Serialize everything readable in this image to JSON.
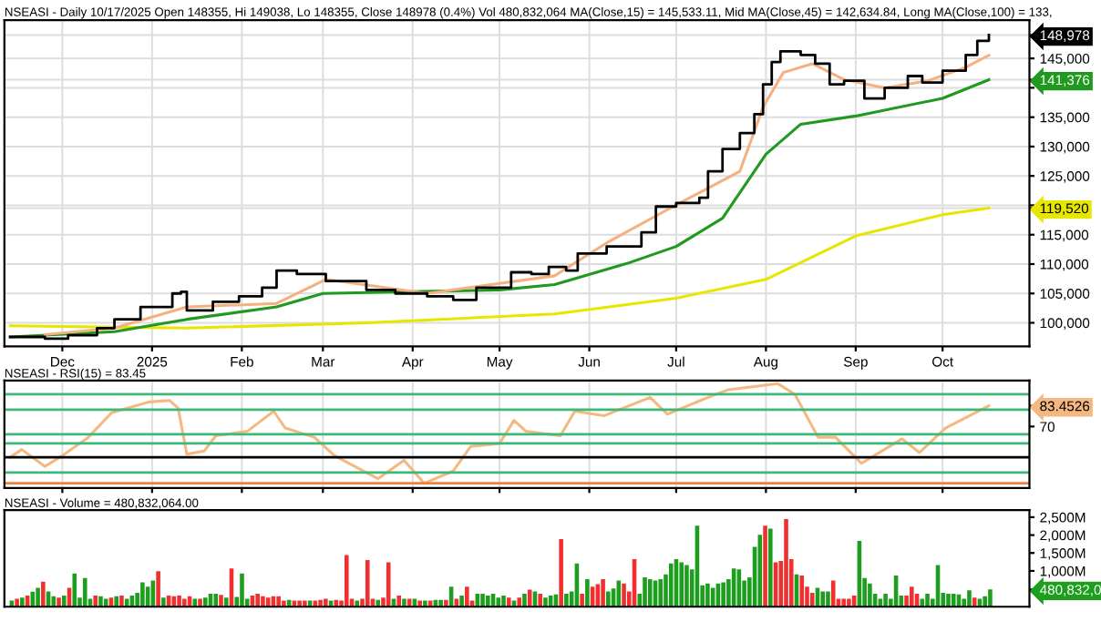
{
  "chart_data": [
    {
      "type": "line",
      "title": "NSEASI - Daily 10/17/2025 Open 148355, Hi 149038, Lo 148355, Close 148978 (0.4%) Vol 480,832,064 MA(Close,15) = 145,533.11, Mid MA(Close,45) = 142,634.84, Long MA(Close,100) = 133,",
      "xlim": [
        "2024-11-11",
        "2025-10-31"
      ],
      "ylim": [
        96000,
        151500
      ],
      "xticks": [
        {
          "value": "2024-12-01",
          "label": "Dec"
        },
        {
          "value": "2025-01-01",
          "label": "2025"
        },
        {
          "value": "2025-02-01",
          "label": "Feb"
        },
        {
          "value": "2025-03-01",
          "label": "Mar"
        },
        {
          "value": "2025-04-01",
          "label": "Apr"
        },
        {
          "value": "2025-05-01",
          "label": "May"
        },
        {
          "value": "2025-06-01",
          "label": "Jun"
        },
        {
          "value": "2025-07-01",
          "label": "Jul"
        },
        {
          "value": "2025-08-01",
          "label": "Aug"
        },
        {
          "value": "2025-09-01",
          "label": "Sep"
        },
        {
          "value": "2025-10-01",
          "label": "Oct"
        }
      ],
      "yticks": [
        {
          "value": 100000,
          "label": "100,000"
        },
        {
          "value": 105000,
          "label": "105,000"
        },
        {
          "value": 110000,
          "label": "110,000"
        },
        {
          "value": 115000,
          "label": "115,000"
        },
        {
          "value": 120000,
          "label": null
        },
        {
          "value": 125000,
          "label": "125,000"
        },
        {
          "value": 130000,
          "label": "130,000"
        },
        {
          "value": 135000,
          "label": "135,000"
        },
        {
          "value": 140000,
          "label": null
        },
        {
          "value": 145000,
          "label": "145,000"
        },
        {
          "value": 119520,
          "label": "119,520"
        },
        {
          "value": 141376,
          "label": "141,376"
        },
        {
          "value": 148978,
          "label": "148,978"
        }
      ],
      "grid": true,
      "series": [
        {
          "type": "line",
          "color": "#e6e600",
          "x": [
            "2024-11-13",
            "2025-01-13",
            "2025-03-16",
            "2025-05-20",
            "2025-07-01",
            "2025-08-01",
            "2025-09-01",
            "2025-10-01",
            "2025-10-17"
          ],
          "values": [
            99500,
            99100,
            100000,
            101500,
            104200,
            107400,
            114800,
            118400,
            119520
          ]
        },
        {
          "type": "line",
          "color": "#1f9a1f",
          "x": [
            "2024-11-13",
            "2024-12-19",
            "2025-01-13",
            "2025-02-13",
            "2025-03-01",
            "2025-04-01",
            "2025-05-01",
            "2025-05-20",
            "2025-06-14",
            "2025-07-01",
            "2025-07-17",
            "2025-08-01",
            "2025-08-13",
            "2025-09-01",
            "2025-10-01",
            "2025-10-17"
          ],
          "values": [
            97600,
            98500,
            100600,
            102700,
            105000,
            105300,
            105600,
            106500,
            110100,
            113000,
            117800,
            128700,
            133800,
            135200,
            138200,
            141376
          ]
        },
        {
          "type": "line",
          "color": "#f5b080",
          "x": [
            "2024-11-25",
            "2024-12-19",
            "2025-01-13",
            "2025-02-13",
            "2025-03-02",
            "2025-04-06",
            "2025-05-20",
            "2025-06-08",
            "2025-06-30",
            "2025-07-23",
            "2025-07-31",
            "2025-08-07",
            "2025-08-17",
            "2025-08-28",
            "2025-09-11",
            "2025-09-26",
            "2025-10-09",
            "2025-10-17"
          ],
          "values": [
            98000,
            99100,
            102700,
            103300,
            107400,
            105000,
            108000,
            113900,
            119800,
            125800,
            136700,
            142600,
            144100,
            141400,
            140000,
            141200,
            143500,
            145533
          ]
        },
        {
          "type": "step",
          "color": "#000000",
          "x": [
            "2024-11-13",
            "2024-11-25",
            "2024-12-03",
            "2024-12-13",
            "2024-12-19",
            "2024-12-28",
            "2025-01-08",
            "2025-01-11",
            "2025-01-13",
            "2025-01-22",
            "2025-01-31",
            "2025-02-08",
            "2025-02-13",
            "2025-02-20",
            "2025-03-02",
            "2025-03-16",
            "2025-03-26",
            "2025-04-06",
            "2025-04-15",
            "2025-04-23",
            "2025-04-30",
            "2025-05-05",
            "2025-05-12",
            "2025-05-18",
            "2025-05-20",
            "2025-05-24",
            "2025-05-28",
            "2025-06-07",
            "2025-06-19",
            "2025-06-24",
            "2025-07-01",
            "2025-07-09",
            "2025-07-12",
            "2025-07-17",
            "2025-07-23",
            "2025-07-28",
            "2025-07-31",
            "2025-08-03",
            "2025-08-06",
            "2025-08-13",
            "2025-08-18",
            "2025-08-23",
            "2025-08-28",
            "2025-09-04",
            "2025-09-11",
            "2025-09-19",
            "2025-09-24",
            "2025-10-01",
            "2025-10-09",
            "2025-10-13",
            "2025-10-17"
          ],
          "values": [
            97600,
            97300,
            97900,
            99100,
            100600,
            102700,
            105000,
            105300,
            102100,
            103600,
            104500,
            106000,
            108900,
            108300,
            107100,
            105600,
            105000,
            104500,
            103900,
            106000,
            106000,
            108600,
            108300,
            109500,
            109500,
            108900,
            111800,
            113000,
            115400,
            119800,
            120400,
            121300,
            125800,
            129600,
            132300,
            135500,
            140600,
            144400,
            146200,
            145600,
            144100,
            140600,
            141200,
            138200,
            140000,
            142000,
            140900,
            142900,
            145600,
            148000,
            148978
          ]
        }
      ]
    },
    {
      "type": "line",
      "title": "NSEASI - RSI(15) = 83.45",
      "xlim": [
        "2024-11-11",
        "2025-10-31"
      ],
      "ylim": [
        30,
        100
      ],
      "xticks": [
        {
          "value": "2024-12-01",
          "label": null
        },
        {
          "value": "2025-01-01",
          "label": null
        },
        {
          "value": "2025-02-01",
          "label": null
        },
        {
          "value": "2025-03-01",
          "label": null
        },
        {
          "value": "2025-04-01",
          "label": null
        },
        {
          "value": "2025-05-01",
          "label": null
        },
        {
          "value": "2025-06-01",
          "label": null
        },
        {
          "value": "2025-07-01",
          "label": null
        },
        {
          "value": "2025-08-01",
          "label": null
        },
        {
          "value": "2025-09-01",
          "label": null
        },
        {
          "value": "2025-10-01",
          "label": null
        }
      ],
      "yticks": [
        70,
        {
          "value": 83.4526,
          "label": "83.4526"
        }
      ],
      "tick_labels": "y",
      "grid": "x",
      "ref_lines": [
        {
          "axis": "y",
          "value": 91,
          "color": "#3cb878"
        },
        {
          "axis": "y",
          "value": 81,
          "color": "#3cb878"
        },
        {
          "axis": "y",
          "value": 65,
          "color": "#3cb878"
        },
        {
          "axis": "y",
          "value": 59,
          "color": "#3cb878"
        },
        {
          "axis": "y",
          "value": 50,
          "color": "#000000"
        },
        {
          "axis": "y",
          "value": 40,
          "color": "#3cb878"
        },
        {
          "axis": "y",
          "value": 33,
          "color": "#f08040"
        }
      ],
      "series": [
        {
          "color": "#f5b880",
          "x": [
            "2024-11-13",
            "2024-11-17",
            "2024-11-25",
            "2024-12-01",
            "2024-12-10",
            "2024-12-18",
            "2024-12-31",
            "2025-01-07",
            "2025-01-10",
            "2025-01-13",
            "2025-01-19",
            "2025-01-23",
            "2025-02-03",
            "2025-02-12",
            "2025-02-16",
            "2025-02-26",
            "2025-03-05",
            "2025-03-20",
            "2025-03-29",
            "2025-04-05",
            "2025-04-15",
            "2025-04-21",
            "2025-05-01",
            "2025-05-06",
            "2025-05-10",
            "2025-05-22",
            "2025-05-27",
            "2025-06-06",
            "2025-06-22",
            "2025-06-28",
            "2025-07-12",
            "2025-07-19",
            "2025-08-05",
            "2025-08-11",
            "2025-08-19",
            "2025-08-25",
            "2025-09-03",
            "2025-09-17",
            "2025-09-23",
            "2025-10-02",
            "2025-10-17"
          ],
          "values": [
            50,
            55,
            44,
            51,
            63,
            79,
            86,
            87,
            82,
            52,
            54,
            64,
            67,
            80,
            69,
            63,
            51,
            36,
            48,
            33,
            41,
            57,
            59,
            74,
            67,
            64,
            80,
            77,
            89,
            78,
            89,
            94,
            98,
            91,
            63,
            63,
            46,
            62,
            53,
            69,
            83.4526
          ]
        }
      ]
    },
    {
      "type": "bar",
      "title": "NSEASI - Volume = 480,832,064.00",
      "ylim": [
        0,
        2700
      ],
      "yticks": [
        {
          "value": 1000,
          "label": "1,000M"
        },
        {
          "value": 1500,
          "label": "1,500M"
        },
        {
          "value": 2000,
          "label": "2,000M"
        },
        {
          "value": 2500,
          "label": "2,500M"
        },
        {
          "value": 480.832064,
          "label": "480,832,0"
        }
      ],
      "tick_labels": "y",
      "categories": [
        null,
        null,
        null,
        null,
        null,
        null,
        null,
        null,
        null,
        null,
        null,
        null,
        null,
        null,
        null,
        null,
        null,
        null,
        null,
        null,
        null,
        null,
        null,
        null,
        null,
        null,
        null,
        null,
        null,
        null,
        null,
        null,
        null,
        null,
        null,
        null,
        null,
        null,
        null,
        null,
        null,
        null,
        null,
        null,
        null,
        null,
        null,
        null,
        null,
        null,
        null,
        null,
        null,
        null,
        null,
        null,
        null,
        null,
        null,
        null,
        null,
        null,
        null,
        null,
        null,
        null,
        null,
        null,
        null,
        null,
        null,
        null,
        null,
        null,
        null,
        null,
        null,
        null,
        null,
        null,
        null,
        null,
        null,
        null,
        null,
        null,
        null,
        null,
        null,
        null,
        null,
        null,
        null,
        null,
        null,
        null,
        null,
        null,
        null,
        null,
        null,
        null,
        null,
        null,
        null,
        null,
        null,
        null,
        null,
        null,
        null,
        null,
        null,
        null,
        null,
        null,
        null,
        null,
        null,
        null,
        null,
        null,
        null,
        null,
        null,
        null,
        null,
        null,
        null,
        null,
        null,
        null,
        null,
        null,
        null,
        null,
        null,
        null,
        null,
        null,
        null,
        null,
        null,
        null,
        null,
        null,
        null,
        null,
        null,
        null,
        null,
        null,
        null,
        null,
        null,
        null,
        null,
        null,
        null,
        null,
        null,
        null,
        null,
        null,
        null,
        null,
        null,
        null,
        null,
        null,
        null,
        null,
        null,
        null,
        null,
        null,
        null,
        null,
        null,
        null,
        null,
        null,
        null,
        null,
        null,
        null,
        null,
        null
      ],
      "values": [
        170,
        220,
        255,
        310,
        420,
        530,
        700,
        425,
        290,
        255,
        310,
        530,
        930,
        255,
        800,
        220,
        310,
        290,
        220,
        255,
        290,
        310,
        220,
        310,
        390,
        680,
        560,
        730,
        990,
        255,
        310,
        290,
        310,
        220,
        290,
        220,
        220,
        255,
        360,
        360,
        330,
        255,
        1070,
        270,
        930,
        220,
        310,
        360,
        290,
        255,
        290,
        290,
        170,
        190,
        170,
        170,
        170,
        170,
        170,
        190,
        220,
        170,
        190,
        170,
        1440,
        220,
        170,
        220,
        1300,
        220,
        190,
        255,
        1240,
        220,
        310,
        220,
        220,
        220,
        170,
        170,
        170,
        190,
        190,
        190,
        560,
        220,
        310,
        560,
        170,
        360,
        360,
        310,
        360,
        255,
        310,
        255,
        170,
        255,
        360,
        475,
        425,
        360,
        255,
        310,
        340,
        1890,
        360,
        425,
        1210,
        360,
        770,
        560,
        630,
        770,
        425,
        510,
        730,
        650,
        425,
        1330,
        360,
        820,
        770,
        730,
        770,
        900,
        1210,
        1330,
        1240,
        1160,
        1040,
        2260,
        600,
        650,
        530,
        650,
        680,
        770,
        1070,
        1040,
        730,
        820,
        1670,
        2010,
        2260,
        2180,
        1240,
        1280,
        2450,
        1330,
        900,
        870,
        560,
        390,
        530,
        425,
        425,
        730,
        220,
        220,
        220,
        310,
        1840,
        800,
        650,
        360,
        220,
        360,
        220,
        870,
        310,
        310,
        560,
        360,
        220,
        360,
        220,
        1160,
        390,
        360,
        360,
        340,
        220,
        460,
        255,
        220,
        290,
        480.832064
      ],
      "colors": [
        "#1e9e1e",
        "#f03030",
        "#1e9e1e",
        "#f03030",
        "#1e9e1e",
        "#1e9e1e",
        "#f03030",
        "#1e9e1e",
        "#1e9e1e",
        "#f03030",
        "#1e9e1e",
        "#f03030",
        "#1e9e1e",
        "#1e9e1e",
        "#1e9e1e",
        "#1e9e1e",
        "#f03030",
        "#1e9e1e",
        "#1e9e1e",
        "#f03030",
        "#1e9e1e",
        "#f03030",
        "#1e9e1e",
        "#1e9e1e",
        "#1e9e1e",
        "#1e9e1e",
        "#1e9e1e",
        "#1e9e1e",
        "#f03030",
        "#1e9e1e",
        "#f03030",
        "#f03030",
        "#f03030",
        "#f03030",
        "#f03030",
        "#1e9e1e",
        "#f03030",
        "#1e9e1e",
        "#1e9e1e",
        "#1e9e1e",
        "#f03030",
        "#1e9e1e",
        "#f03030",
        "#1e9e1e",
        "#1e9e1e",
        "#1e9e1e",
        "#f03030",
        "#f03030",
        "#f03030",
        "#f03030",
        "#f03030",
        "#f03030",
        "#f03030",
        "#1e9e1e",
        "#f03030",
        "#f03030",
        "#f03030",
        "#1e9e1e",
        "#f03030",
        "#f03030",
        "#f03030",
        "#1e9e1e",
        "#f03030",
        "#f03030",
        "#f03030",
        "#f03030",
        "#1e9e1e",
        "#f03030",
        "#f03030",
        "#f03030",
        "#1e9e1e",
        "#f03030",
        "#f03030",
        "#1e9e1e",
        "#f03030",
        "#1e9e1e",
        "#f03030",
        "#1e9e1e",
        "#f03030",
        "#1e9e1e",
        "#f03030",
        "#1e9e1e",
        "#1e9e1e",
        "#f03030",
        "#1e9e1e",
        "#f03030",
        "#1e9e1e",
        "#f03030",
        "#f03030",
        "#1e9e1e",
        "#1e9e1e",
        "#1e9e1e",
        "#1e9e1e",
        "#1e9e1e",
        "#1e9e1e",
        "#f03030",
        "#1e9e1e",
        "#f03030",
        "#1e9e1e",
        "#f03030",
        "#1e9e1e",
        "#f03030",
        "#1e9e1e",
        "#1e9e1e",
        "#1e9e1e",
        "#f03030",
        "#1e9e1e",
        "#1e9e1e",
        "#1e9e1e",
        "#f03030",
        "#1e9e1e",
        "#f03030",
        "#f03030",
        "#f03030",
        "#1e9e1e",
        "#1e9e1e",
        "#1e9e1e",
        "#f03030",
        "#f03030",
        "#f03030",
        "#1e9e1e",
        "#1e9e1e",
        "#1e9e1e",
        "#1e9e1e",
        "#1e9e1e",
        "#1e9e1e",
        "#1e9e1e",
        "#1e9e1e",
        "#1e9e1e",
        "#1e9e1e",
        "#1e9e1e",
        "#1e9e1e",
        "#1e9e1e",
        "#1e9e1e",
        "#1e9e1e",
        "#1e9e1e",
        "#1e9e1e",
        "#1e9e1e",
        "#1e9e1e",
        "#1e9e1e",
        "#1e9e1e",
        "#1e9e1e",
        "#1e9e1e",
        "#1e9e1e",
        "#f03030",
        "#1e9e1e",
        "#f03030",
        "#f03030",
        "#f03030",
        "#f03030",
        "#1e9e1e",
        "#f03030",
        "#f03030",
        "#f03030",
        "#1e9e1e",
        "#1e9e1e",
        "#1e9e1e",
        "#f03030",
        "#f03030",
        "#f03030",
        "#f03030",
        "#f03030",
        "#1e9e1e",
        "#1e9e1e",
        "#1e9e1e",
        "#1e9e1e",
        "#1e9e1e",
        "#1e9e1e",
        "#1e9e1e",
        "#1e9e1e",
        "#1e9e1e",
        "#f03030",
        "#f03030",
        "#f03030",
        "#1e9e1e",
        "#1e9e1e",
        "#1e9e1e",
        "#1e9e1e",
        "#1e9e1e",
        "#1e9e1e",
        "#1e9e1e",
        "#1e9e1e",
        "#1e9e1e",
        "#1e9e1e",
        "#f03030",
        "#1e9e1e",
        "#1e9e1e",
        "#1e9e1e"
      ]
    }
  ]
}
